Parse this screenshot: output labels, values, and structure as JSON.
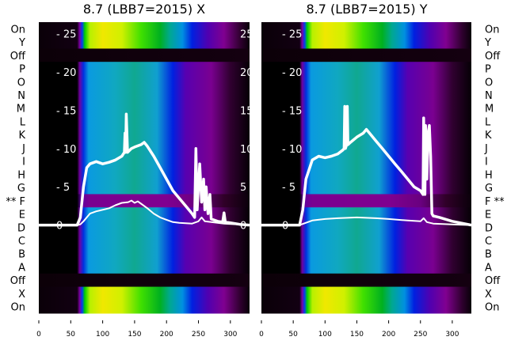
{
  "chart_data": [
    {
      "type": "heatmap",
      "title": "8.7 (LBB7=2015) X",
      "row_labels": [
        "On",
        "Y",
        "Off",
        "P",
        "O",
        "N",
        "M",
        "L",
        "K",
        "J",
        "I",
        "H",
        "G",
        "** F",
        "E",
        "D",
        "C",
        "B",
        "A",
        "Off",
        "X",
        "On"
      ],
      "row_kinds": [
        "on",
        "on",
        "off",
        "mid",
        "mid",
        "mid",
        "mid",
        "mid",
        "mid",
        "mid",
        "mid",
        "mid",
        "mid",
        "marked",
        "mid",
        "mid",
        "mid",
        "mid",
        "mid",
        "off",
        "on",
        "on"
      ],
      "row_label_side": "left",
      "xlim": [
        0,
        330
      ],
      "x_ticks": [
        0,
        50,
        100,
        150,
        200,
        250,
        300
      ],
      "overlay_ylim": [
        -11.5,
        26.5
      ],
      "overlay_y_ticks": [
        0,
        5,
        10,
        15,
        20,
        25
      ],
      "overlay_series": [
        {
          "name": "upper",
          "x": [
            0,
            60,
            65,
            70,
            75,
            80,
            90,
            100,
            110,
            120,
            130,
            134,
            135,
            136,
            137,
            139,
            145,
            150,
            160,
            165,
            170,
            180,
            190,
            200,
            210,
            220,
            230,
            240,
            244,
            246,
            248,
            250,
            252,
            255,
            258,
            260,
            262,
            265,
            268,
            270,
            280,
            288,
            290,
            292,
            300,
            315,
            330
          ],
          "y": [
            0,
            0,
            1,
            5,
            7.5,
            8,
            8.3,
            8,
            8.2,
            8.5,
            9,
            9.5,
            12,
            9.5,
            14.5,
            9.5,
            10,
            10.2,
            10.5,
            10.8,
            10.3,
            9,
            7.5,
            6,
            4.5,
            3.5,
            2.5,
            1.5,
            1,
            10,
            2,
            5,
            8,
            3,
            6,
            2,
            5,
            1.5,
            4,
            0.8,
            0.5,
            0.4,
            1.6,
            0.4,
            0.3,
            0.1,
            0
          ]
        },
        {
          "name": "lower",
          "x": [
            0,
            60,
            65,
            70,
            80,
            90,
            100,
            110,
            120,
            130,
            140,
            145,
            150,
            155,
            160,
            170,
            180,
            190,
            200,
            210,
            220,
            240,
            250,
            255,
            260,
            270,
            290,
            330
          ],
          "y": [
            0,
            0,
            0.1,
            0.5,
            1.5,
            1.8,
            2,
            2.2,
            2.6,
            2.9,
            3,
            3.2,
            2.9,
            3.1,
            2.8,
            2.2,
            1.5,
            1,
            0.7,
            0.4,
            0.3,
            0.2,
            0.5,
            1,
            0.5,
            0.4,
            0.2,
            0
          ]
        }
      ]
    },
    {
      "type": "heatmap",
      "title": "8.7 (LBB7=2015) Y",
      "row_labels": [
        "On",
        "Y",
        "Off",
        "P",
        "O",
        "N",
        "M",
        "L",
        "K",
        "J",
        "I",
        "H",
        "G",
        "F **",
        "E",
        "D",
        "C",
        "B",
        "A",
        "Off",
        "X",
        "On"
      ],
      "row_kinds": [
        "on",
        "on",
        "off",
        "mid",
        "mid",
        "mid",
        "mid",
        "mid",
        "mid",
        "mid",
        "mid",
        "mid",
        "mid",
        "marked",
        "mid",
        "mid",
        "mid",
        "mid",
        "mid",
        "off",
        "on",
        "on"
      ],
      "row_label_side": "right",
      "xlim": [
        0,
        330
      ],
      "x_ticks": [
        0,
        50,
        100,
        150,
        200,
        250,
        300
      ],
      "overlay_ylim": [
        -11.5,
        26.5
      ],
      "overlay_y_ticks": [
        0,
        5,
        10,
        15,
        20,
        25
      ],
      "overlay_series": [
        {
          "name": "upper",
          "x": [
            0,
            60,
            65,
            70,
            80,
            90,
            100,
            110,
            120,
            128,
            130,
            131,
            132,
            134,
            135,
            136,
            140,
            150,
            160,
            165,
            170,
            180,
            190,
            200,
            210,
            220,
            230,
            240,
            250,
            254,
            255,
            257,
            258,
            260,
            262,
            264,
            266,
            268,
            270,
            280,
            300,
            330
          ],
          "y": [
            0,
            0,
            2,
            6,
            8.5,
            9,
            8.8,
            9,
            9.3,
            9.8,
            10,
            15.5,
            10,
            10.5,
            15.5,
            10.5,
            10.8,
            11.5,
            12,
            12.5,
            12,
            11,
            10,
            9,
            8,
            7,
            6,
            5,
            4.5,
            4,
            14,
            4,
            13,
            6,
            12,
            13,
            9,
            1.5,
            1.2,
            1,
            0.5,
            0
          ]
        },
        {
          "name": "lower",
          "x": [
            0,
            60,
            70,
            80,
            100,
            120,
            150,
            180,
            200,
            230,
            250,
            255,
            260,
            270,
            300,
            330
          ],
          "y": [
            0,
            0,
            0.3,
            0.6,
            0.8,
            0.9,
            1,
            0.9,
            0.8,
            0.6,
            0.5,
            0.9,
            0.4,
            0.2,
            0.1,
            0
          ]
        }
      ]
    }
  ],
  "colors": {
    "on": [
      [
        0,
        "#0a0008"
      ],
      [
        60,
        "#120012"
      ],
      [
        64,
        "#7a00a0"
      ],
      [
        68,
        "#0040f0"
      ],
      [
        72,
        "#00d000"
      ],
      [
        80,
        "#b8f000"
      ],
      [
        100,
        "#f0e800"
      ],
      [
        130,
        "#d0f000"
      ],
      [
        160,
        "#40e000"
      ],
      [
        190,
        "#00b020"
      ],
      [
        205,
        "#00a890"
      ],
      [
        225,
        "#0090e0"
      ],
      [
        240,
        "#0020e0"
      ],
      [
        265,
        "#5000b0"
      ],
      [
        290,
        "#800090"
      ],
      [
        315,
        "#300030"
      ],
      [
        330,
        "#080008"
      ]
    ],
    "mid": [
      [
        0,
        "#000000"
      ],
      [
        60,
        "#000000"
      ],
      [
        64,
        "#7000a0"
      ],
      [
        70,
        "#0030e0"
      ],
      [
        78,
        "#0a9ae0"
      ],
      [
        120,
        "#10a8c0"
      ],
      [
        150,
        "#10a890"
      ],
      [
        185,
        "#10a0d0"
      ],
      [
        210,
        "#0020e0"
      ],
      [
        230,
        "#5800b0"
      ],
      [
        270,
        "#7a0090"
      ],
      [
        300,
        "#300030"
      ],
      [
        330,
        "#050005"
      ]
    ],
    "marked": [
      [
        0,
        "#000000"
      ],
      [
        60,
        "#000000"
      ],
      [
        66,
        "#6000a0"
      ],
      [
        80,
        "#7a0090"
      ],
      [
        200,
        "#800090"
      ],
      [
        250,
        "#6a0080"
      ],
      [
        290,
        "#300028"
      ],
      [
        330,
        "#0a000a"
      ]
    ],
    "off": [
      [
        0,
        "#0c0008"
      ],
      [
        330,
        "#140010"
      ]
    ],
    "line": "#ffffff"
  }
}
